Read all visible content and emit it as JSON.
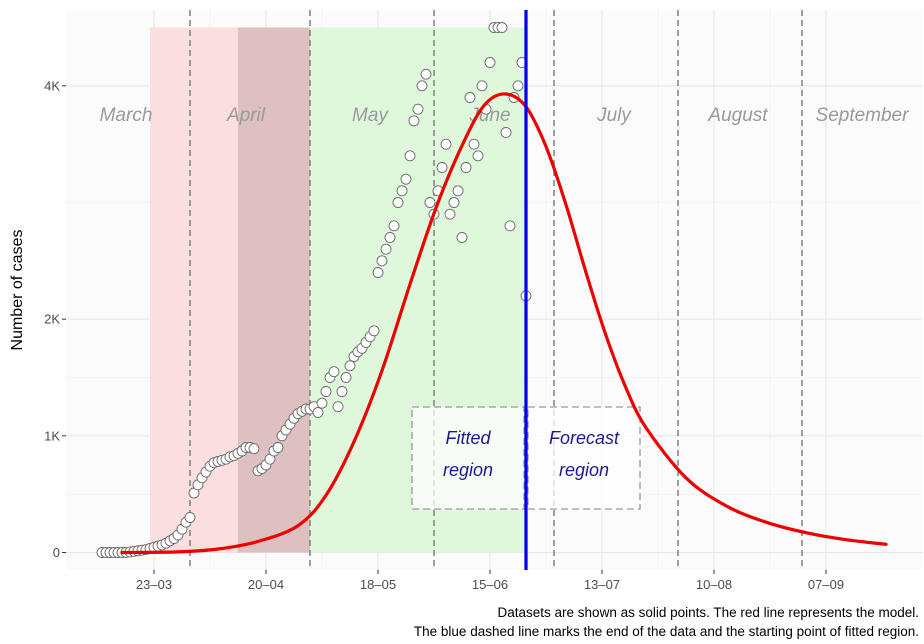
{
  "chart_data": {
    "type": "scatter",
    "title": "",
    "xlabel": "",
    "ylabel": "Number of cases",
    "x_axis_type": "date",
    "year": 2020,
    "xlim": [
      "2020-03-01",
      "2020-10-01"
    ],
    "ylim": [
      -150,
      4650
    ],
    "grid": true,
    "x_ticks": [
      {
        "date": "2020-03-23",
        "label": "23–03"
      },
      {
        "date": "2020-04-20",
        "label": "20–04"
      },
      {
        "date": "2020-05-18",
        "label": "18–05"
      },
      {
        "date": "2020-06-15",
        "label": "15–06"
      },
      {
        "date": "2020-07-13",
        "label": "13–07"
      },
      {
        "date": "2020-08-10",
        "label": "10–08"
      },
      {
        "date": "2020-09-07",
        "label": "07–09"
      }
    ],
    "y_ticks": [
      {
        "value": 0,
        "label": "0"
      },
      {
        "value": 1000,
        "label": "1K"
      },
      {
        "value": 2000,
        "label": "2K"
      },
      {
        "value": 4000,
        "label": "4K"
      }
    ],
    "month_boundaries": [
      "2020-04-01",
      "2020-05-01",
      "2020-06-01",
      "2020-07-01",
      "2020-08-01",
      "2020-09-01"
    ],
    "month_labels": [
      {
        "label": "March",
        "date": "2020-03-16"
      },
      {
        "label": "April",
        "date": "2020-04-15"
      },
      {
        "label": "May",
        "date": "2020-05-16"
      },
      {
        "label": "June",
        "date": "2020-06-15"
      },
      {
        "label": "July",
        "date": "2020-07-16"
      },
      {
        "label": "August",
        "date": "2020-08-16"
      },
      {
        "label": "September",
        "date": "2020-09-16"
      }
    ],
    "shaded_regions": [
      {
        "start": "2020-03-22",
        "end": "2020-04-13",
        "color": "#fbdede"
      },
      {
        "start": "2020-04-13",
        "end": "2020-05-01",
        "color": "#dfc0c0"
      },
      {
        "start": "2020-05-01",
        "end": "2020-06-24",
        "color": "#dff8dc"
      }
    ],
    "data_end": "2020-06-24",
    "region_labels": [
      {
        "lines": [
          "Fitted",
          "region"
        ],
        "date": "2020-06-08"
      },
      {
        "lines": [
          "Forecast",
          "region"
        ],
        "date": "2020-07-03"
      }
    ],
    "model_curve": {
      "color": "#ee0000",
      "x": [
        "2020-03-15",
        "2020-03-29",
        "2020-04-08",
        "2020-04-18",
        "2020-04-28",
        "2020-05-05",
        "2020-05-12",
        "2020-05-19",
        "2020-05-26",
        "2020-06-02",
        "2020-06-09",
        "2020-06-14",
        "2020-06-19",
        "2020-06-24",
        "2020-06-29",
        "2020-07-04",
        "2020-07-09",
        "2020-07-14",
        "2020-07-19",
        "2020-07-24",
        "2020-08-03",
        "2020-08-13",
        "2020-08-23",
        "2020-09-02",
        "2020-09-12",
        "2020-09-22"
      ],
      "y": [
        0,
        5,
        30,
        95,
        230,
        490,
        950,
        1560,
        2300,
        3000,
        3560,
        3850,
        3930,
        3820,
        3480,
        2980,
        2400,
        1860,
        1410,
        1070,
        640,
        400,
        260,
        170,
        110,
        70
      ]
    },
    "series": [
      {
        "x": [
          "2020-03-10",
          "2020-03-11",
          "2020-03-12",
          "2020-03-13",
          "2020-03-14",
          "2020-03-15",
          "2020-03-16",
          "2020-03-17",
          "2020-03-18",
          "2020-03-19",
          "2020-03-20",
          "2020-03-21",
          "2020-03-22",
          "2020-03-23",
          "2020-03-24",
          "2020-03-25",
          "2020-03-26",
          "2020-03-27",
          "2020-03-28",
          "2020-03-29",
          "2020-03-30",
          "2020-03-31",
          "2020-04-01",
          "2020-04-02",
          "2020-04-03",
          "2020-04-04",
          "2020-04-05",
          "2020-04-06",
          "2020-04-07",
          "2020-04-08",
          "2020-04-09",
          "2020-04-10",
          "2020-04-11",
          "2020-04-12",
          "2020-04-13",
          "2020-04-14",
          "2020-04-15",
          "2020-04-16",
          "2020-04-17",
          "2020-04-18",
          "2020-04-19",
          "2020-04-20",
          "2020-04-21",
          "2020-04-22",
          "2020-04-23",
          "2020-04-24",
          "2020-04-25",
          "2020-04-26",
          "2020-04-27",
          "2020-04-28",
          "2020-04-29",
          "2020-04-30",
          "2020-05-01",
          "2020-05-02",
          "2020-05-03",
          "2020-05-04",
          "2020-05-05",
          "2020-05-06",
          "2020-05-07",
          "2020-05-08",
          "2020-05-09",
          "2020-05-10",
          "2020-05-11",
          "2020-05-12",
          "2020-05-13",
          "2020-05-14",
          "2020-05-15",
          "2020-05-16",
          "2020-05-17",
          "2020-05-18",
          "2020-05-19",
          "2020-05-20",
          "2020-05-21",
          "2020-05-22",
          "2020-05-23",
          "2020-05-24",
          "2020-05-25",
          "2020-05-26",
          "2020-05-27",
          "2020-05-28",
          "2020-05-29",
          "2020-05-30",
          "2020-05-31",
          "2020-06-01",
          "2020-06-02",
          "2020-06-03",
          "2020-06-04",
          "2020-06-05",
          "2020-06-06",
          "2020-06-07",
          "2020-06-08",
          "2020-06-09",
          "2020-06-10",
          "2020-06-11",
          "2020-06-12",
          "2020-06-13",
          "2020-06-14",
          "2020-06-15",
          "2020-06-16",
          "2020-06-17",
          "2020-06-18",
          "2020-06-19",
          "2020-06-20",
          "2020-06-21",
          "2020-06-22",
          "2020-06-23",
          "2020-06-24"
        ],
        "y": [
          0,
          0,
          0,
          0,
          0,
          0,
          0,
          5,
          10,
          15,
          20,
          25,
          35,
          45,
          55,
          65,
          80,
          100,
          120,
          150,
          200,
          260,
          300,
          510,
          580,
          640,
          690,
          740,
          770,
          780,
          790,
          800,
          820,
          830,
          850,
          870,
          900,
          900,
          890,
          700,
          720,
          750,
          800,
          870,
          900,
          1000,
          1050,
          1100,
          1150,
          1190,
          1210,
          1230,
          1230,
          1250,
          1200,
          1280,
          1380,
          1500,
          1550,
          1250,
          1380,
          1500,
          1600,
          1680,
          1720,
          1750,
          1800,
          1850,
          1900,
          2400,
          2500,
          2600,
          2700,
          2800,
          3000,
          3100,
          3200,
          3400,
          3700,
          3800,
          4000,
          4100,
          3000,
          2900,
          3100,
          3300,
          3500,
          2900,
          3000,
          3100,
          2700,
          3300,
          3900,
          3500,
          3400,
          4000,
          3800,
          4200,
          4500,
          4500,
          4500,
          3600,
          2800,
          3900,
          4000,
          4200,
          2200
        ]
      }
    ],
    "annotations": [
      "Datasets are shown as solid points. The red line represents the model.",
      "The blue dashed line marks the end of the data and the starting point of fitted region."
    ]
  }
}
